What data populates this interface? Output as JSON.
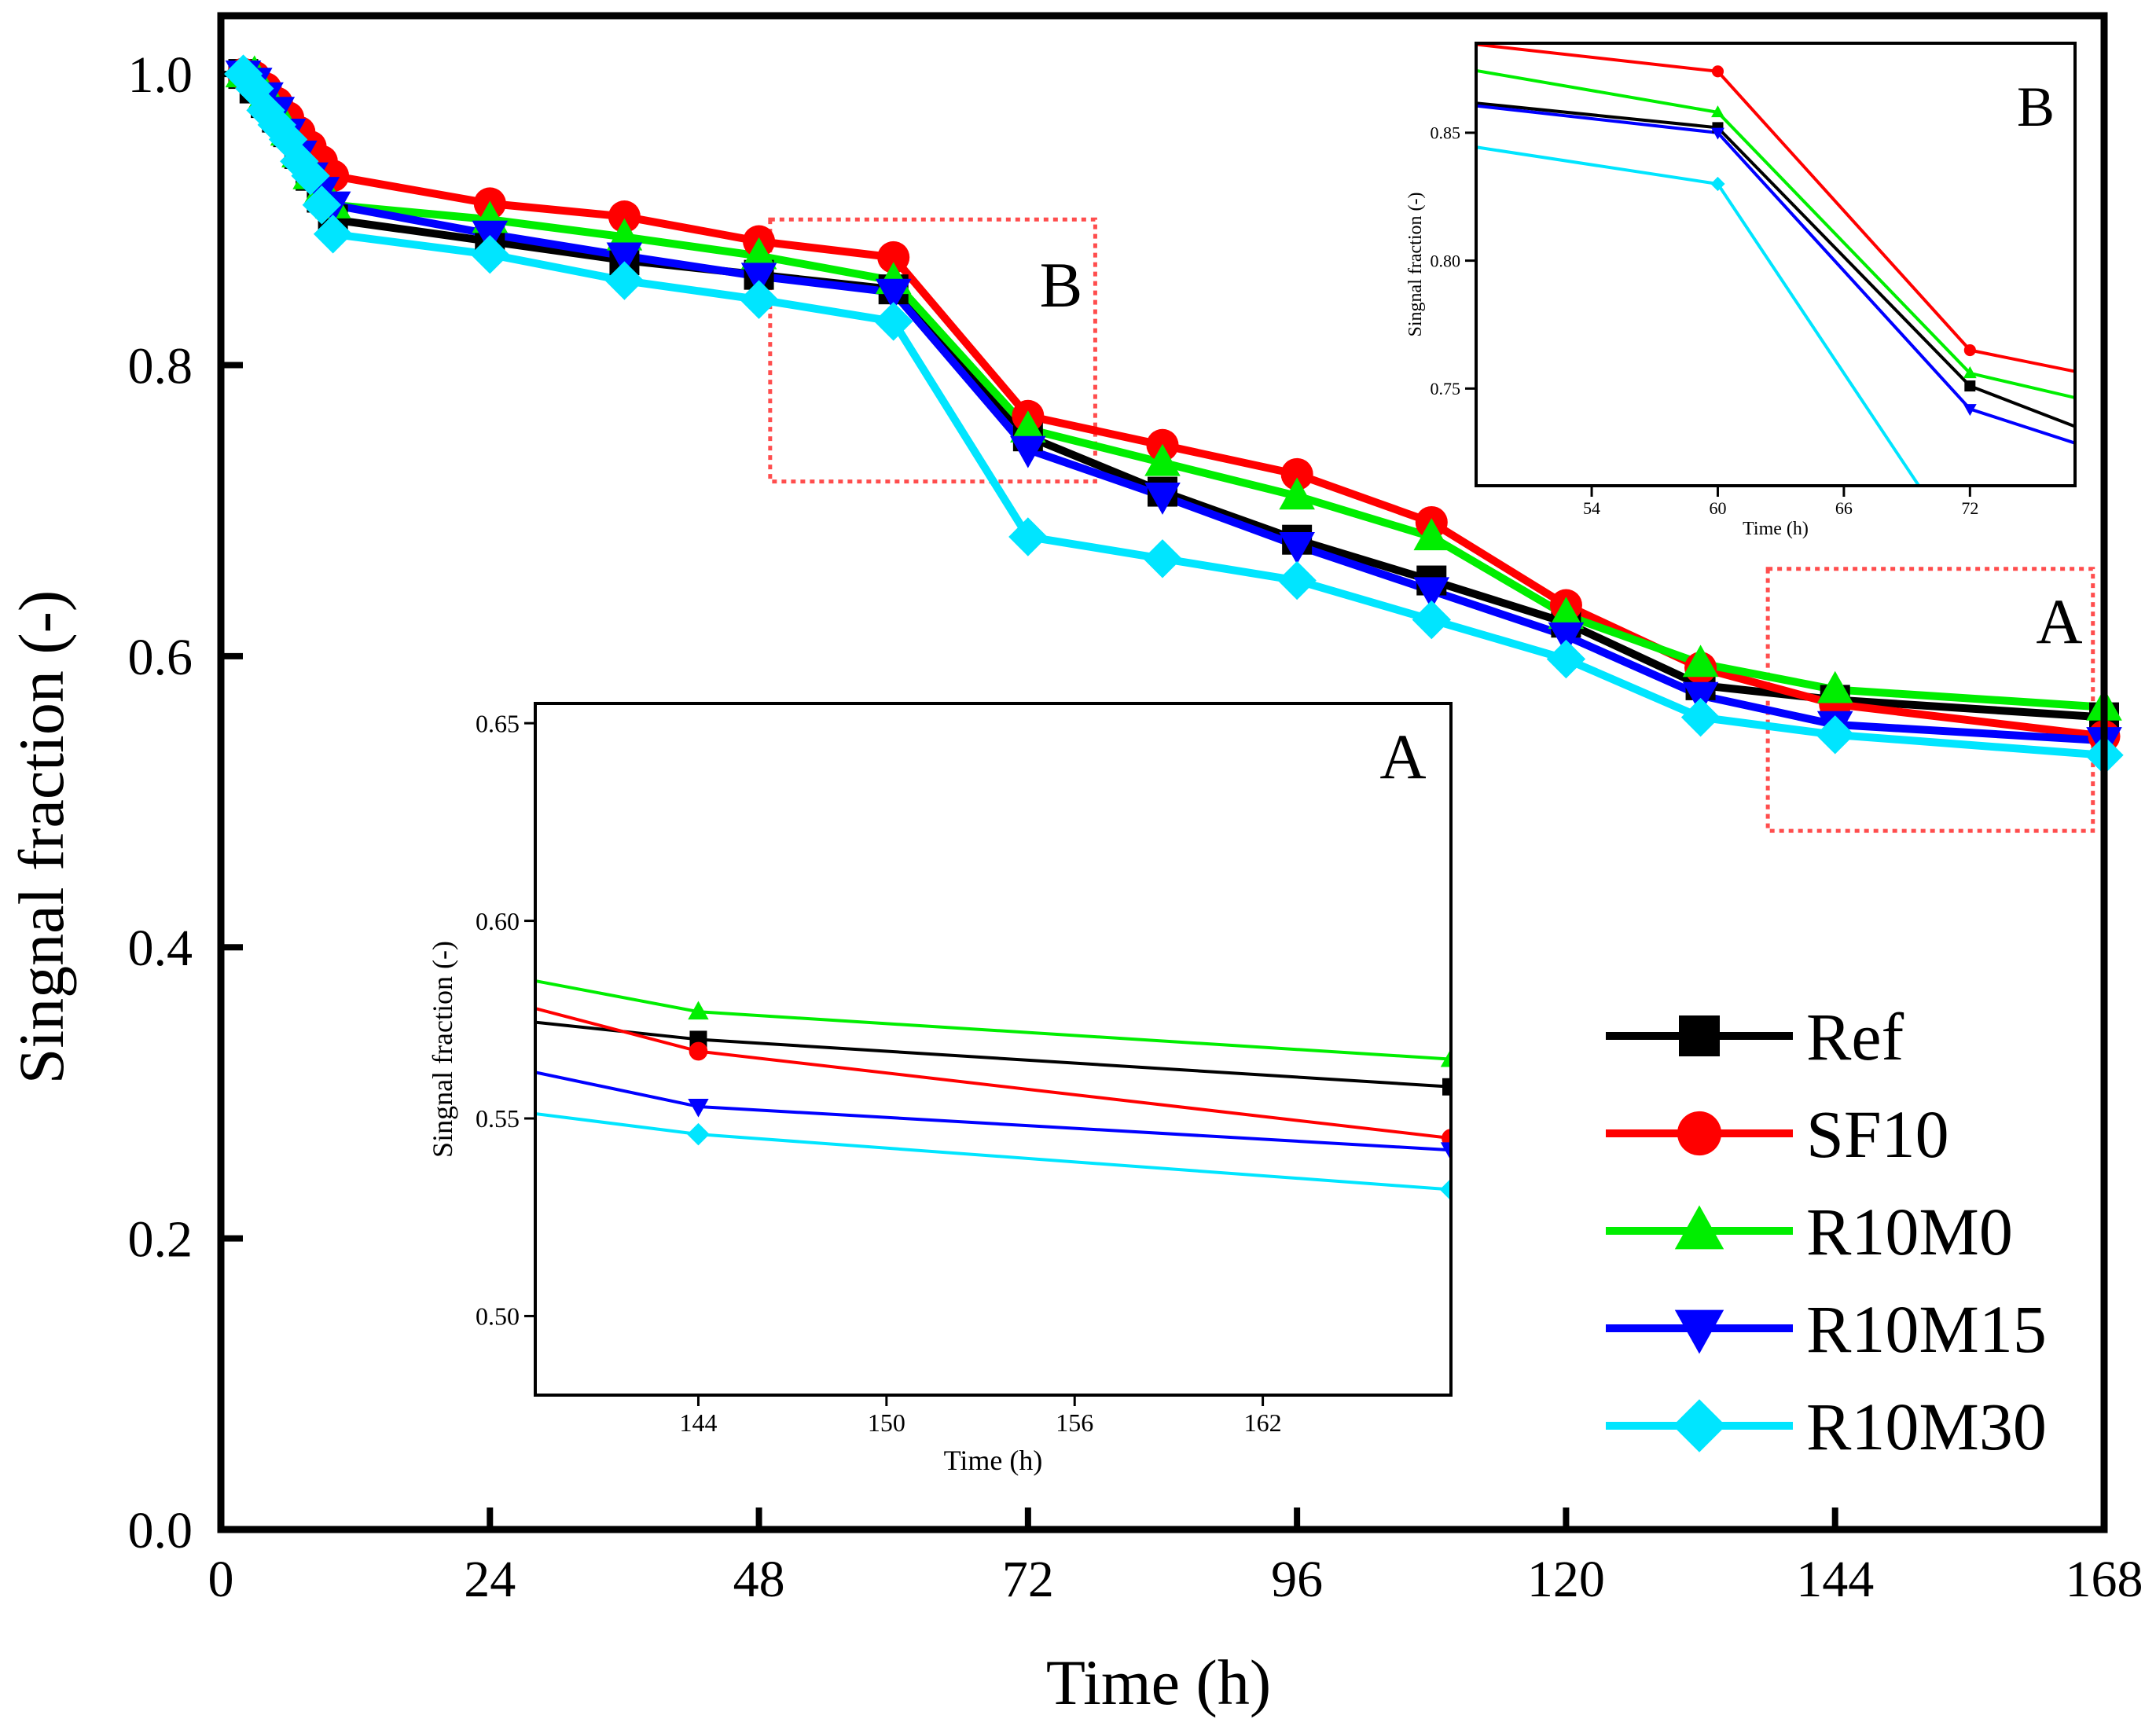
{
  "chart_data": {
    "type": "line",
    "xlabel": "Time (h)",
    "ylabel": "Singnal fraction (-)",
    "xlim": [
      0,
      168
    ],
    "ylim": [
      0,
      1.04
    ],
    "xticks": [
      "0",
      "24",
      "48",
      "72",
      "96",
      "120",
      "144",
      "168"
    ],
    "yticks": [
      "0.0",
      "0.2",
      "0.4",
      "0.6",
      "0.8",
      "1.0"
    ],
    "legend_position": "bottom-right",
    "series": [
      {
        "name": "Ref",
        "color": "#000000",
        "marker": "square",
        "x": [
          2,
          3,
          4,
          5,
          6,
          7,
          8,
          9,
          10,
          24,
          36,
          48,
          60,
          72,
          84,
          96,
          108,
          120,
          132,
          144,
          168
        ],
        "y": [
          1.0,
          0.99,
          0.98,
          0.97,
          0.96,
          0.945,
          0.93,
          0.915,
          0.9,
          0.885,
          0.872,
          0.862,
          0.852,
          0.751,
          0.713,
          0.68,
          0.652,
          0.623,
          0.58,
          0.57,
          0.558
        ]
      },
      {
        "name": "SF10",
        "color": "#ff0000",
        "marker": "circle",
        "x": [
          2,
          3,
          4,
          5,
          6,
          7,
          8,
          9,
          10,
          24,
          36,
          48,
          60,
          72,
          84,
          96,
          108,
          120,
          132,
          144,
          168
        ],
        "y": [
          1.0,
          0.998,
          0.99,
          0.98,
          0.97,
          0.96,
          0.95,
          0.94,
          0.93,
          0.911,
          0.902,
          0.885,
          0.874,
          0.765,
          0.745,
          0.725,
          0.692,
          0.635,
          0.592,
          0.567,
          0.545
        ]
      },
      {
        "name": "R10M0",
        "color": "#00ee00",
        "marker": "triangle-up",
        "x": [
          2,
          3,
          4,
          5,
          6,
          7,
          8,
          9,
          10,
          24,
          36,
          48,
          60,
          72,
          84,
          96,
          108,
          120,
          132,
          144,
          168
        ],
        "y": [
          1.0,
          1.0,
          0.985,
          0.975,
          0.96,
          0.945,
          0.93,
          0.92,
          0.91,
          0.9,
          0.888,
          0.875,
          0.858,
          0.756,
          0.733,
          0.71,
          0.682,
          0.628,
          0.595,
          0.577,
          0.565
        ]
      },
      {
        "name": "R10M15",
        "color": "#0000ff",
        "marker": "triangle-down",
        "x": [
          2,
          3,
          4,
          5,
          6,
          7,
          8,
          9,
          10,
          24,
          36,
          48,
          60,
          72,
          84,
          96,
          108,
          120,
          132,
          144,
          168
        ],
        "y": [
          1.0,
          0.995,
          0.985,
          0.975,
          0.96,
          0.945,
          0.93,
          0.92,
          0.91,
          0.89,
          0.875,
          0.861,
          0.85,
          0.742,
          0.71,
          0.676,
          0.645,
          0.614,
          0.573,
          0.553,
          0.542
        ]
      },
      {
        "name": "R10M30",
        "color": "#00e5ff",
        "marker": "diamond",
        "x": [
          2,
          3,
          4,
          5,
          6,
          7,
          8,
          9,
          10,
          24,
          36,
          48,
          60,
          72,
          84,
          96,
          108,
          120,
          132,
          144,
          168
        ],
        "y": [
          1.0,
          0.99,
          0.975,
          0.965,
          0.955,
          0.94,
          0.93,
          0.91,
          0.89,
          0.876,
          0.858,
          0.845,
          0.83,
          0.682,
          0.667,
          0.652,
          0.625,
          0.598,
          0.558,
          0.546,
          0.532
        ]
      }
    ],
    "zoom_boxes": [
      {
        "label": "B",
        "xlim": [
          49,
          78
        ],
        "ylim": [
          0.72,
          0.9
        ]
      },
      {
        "label": "A",
        "xlim": [
          138,
          167
        ],
        "ylim": [
          0.48,
          0.66
        ]
      }
    ],
    "insets": [
      {
        "label": "B",
        "xlabel": "Time (h)",
        "ylabel": "Singnal fraction (-)",
        "xlim": [
          48.5,
          77
        ],
        "ylim": [
          0.712,
          0.885
        ],
        "xticks": [
          "54",
          "60",
          "66",
          "72"
        ],
        "yticks": [
          "0.75",
          "0.80",
          "0.85"
        ]
      },
      {
        "label": "A",
        "xlabel": "Time (h)",
        "ylabel": "Singnal fraction (-)",
        "xlim": [
          138.8,
          168
        ],
        "ylim": [
          0.48,
          0.655
        ],
        "xticks": [
          "144",
          "150",
          "156",
          "162"
        ],
        "yticks": [
          "0.50",
          "0.55",
          "0.60",
          "0.65"
        ]
      }
    ]
  }
}
